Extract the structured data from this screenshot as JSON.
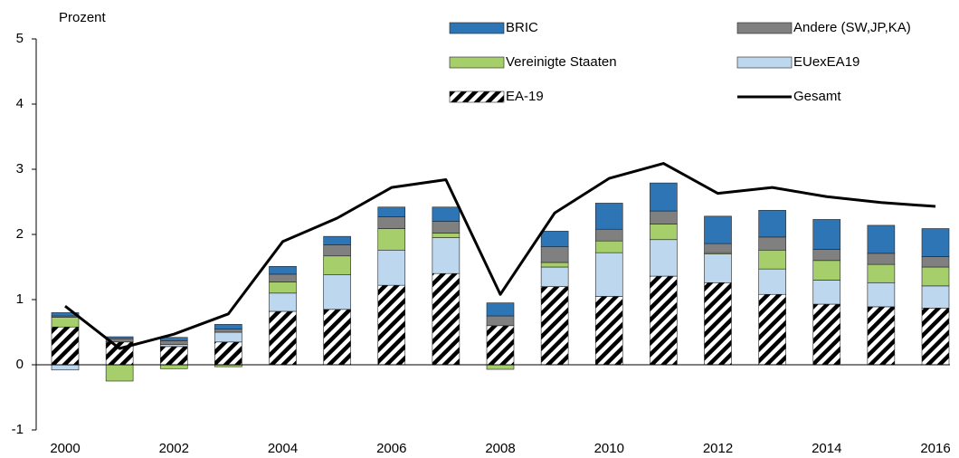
{
  "chart_data": {
    "type": "bar",
    "y_label": "Prozent",
    "categories": [
      "2000",
      null,
      "2002",
      null,
      "2004",
      null,
      "2006",
      null,
      "2008",
      null,
      "2010",
      null,
      "2012",
      null,
      "2014",
      null,
      "2016"
    ],
    "series": [
      {
        "name": "BRIC",
        "type": "bar",
        "color": "#2e75b6",
        "values": [
          0.05,
          0.03,
          0.05,
          0.07,
          0.12,
          0.13,
          0.15,
          0.22,
          0.2,
          0.24,
          0.4,
          0.43,
          0.42,
          0.41,
          0.46,
          0.43,
          0.43
        ]
      },
      {
        "name": "Andere (SW,JP,KA)",
        "type": "bar",
        "color": "#808080",
        "values": [
          0.02,
          0.05,
          0.06,
          0.05,
          0.12,
          0.17,
          0.18,
          0.18,
          0.15,
          0.24,
          0.18,
          0.2,
          0.14,
          0.2,
          0.17,
          0.17,
          0.16
        ]
      },
      {
        "name": "Vereinigte Staaten",
        "type": "bar",
        "color": "#a6cf6b",
        "values": [
          0.15,
          -0.25,
          -0.06,
          -0.03,
          0.17,
          0.29,
          0.33,
          0.07,
          -0.07,
          0.07,
          0.18,
          0.24,
          0.02,
          0.29,
          0.3,
          0.28,
          0.29
        ]
      },
      {
        "name": "EUexEA19",
        "type": "bar",
        "color": "#bdd7ee",
        "values": [
          -0.08,
          0.0,
          0.03,
          0.15,
          0.28,
          0.53,
          0.54,
          0.55,
          0.0,
          0.3,
          0.67,
          0.56,
          0.44,
          0.39,
          0.37,
          0.37,
          0.34
        ]
      },
      {
        "name": "EA-19",
        "type": "bar",
        "color": "#000000",
        "hatch": true,
        "values": [
          0.58,
          0.35,
          0.28,
          0.35,
          0.82,
          0.85,
          1.22,
          1.4,
          0.6,
          1.2,
          1.05,
          1.36,
          1.26,
          1.08,
          0.93,
          0.89,
          0.87
        ]
      },
      {
        "name": "Gesamt",
        "type": "line",
        "color": "#000000",
        "values": [
          0.9,
          0.25,
          0.47,
          0.78,
          1.89,
          2.25,
          2.72,
          2.84,
          1.08,
          2.33,
          2.86,
          3.09,
          2.63,
          2.72,
          2.58,
          2.49,
          2.43
        ]
      }
    ],
    "ylim": [
      -1,
      5
    ],
    "yticks": [
      -1,
      0,
      1,
      2,
      3,
      4,
      5
    ],
    "grid": false
  }
}
